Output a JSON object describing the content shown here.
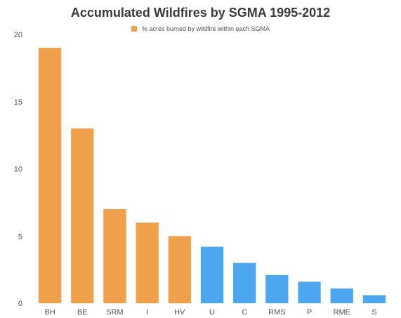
{
  "chart_data": {
    "type": "bar",
    "title": "Accumulated Wildfires by SGMA 1995-2012",
    "xlabel": "",
    "ylabel": "",
    "ylim": [
      0,
      20
    ],
    "yticks": [
      0,
      5,
      10,
      15,
      20
    ],
    "grid": false,
    "legend_position": "top-center",
    "categories": [
      "BH",
      "BE",
      "SRM",
      "I",
      "HV",
      "U",
      "C",
      "RMS",
      "P",
      "RME",
      "S"
    ],
    "series": [
      {
        "name": "% acres burned by wildfire within each SGMA",
        "values": [
          19,
          13,
          7,
          6,
          5,
          4.2,
          3,
          2.1,
          1.6,
          1.1,
          0.6
        ]
      }
    ],
    "bar_colors": [
      "#f0a04b",
      "#f0a04b",
      "#f0a04b",
      "#f0a04b",
      "#f0a04b",
      "#4da6f0",
      "#4da6f0",
      "#4da6f0",
      "#4da6f0",
      "#4da6f0",
      "#4da6f0"
    ]
  },
  "colors": {
    "orange": "#f0a04b",
    "blue": "#4da6f0",
    "axis": "#555555"
  }
}
